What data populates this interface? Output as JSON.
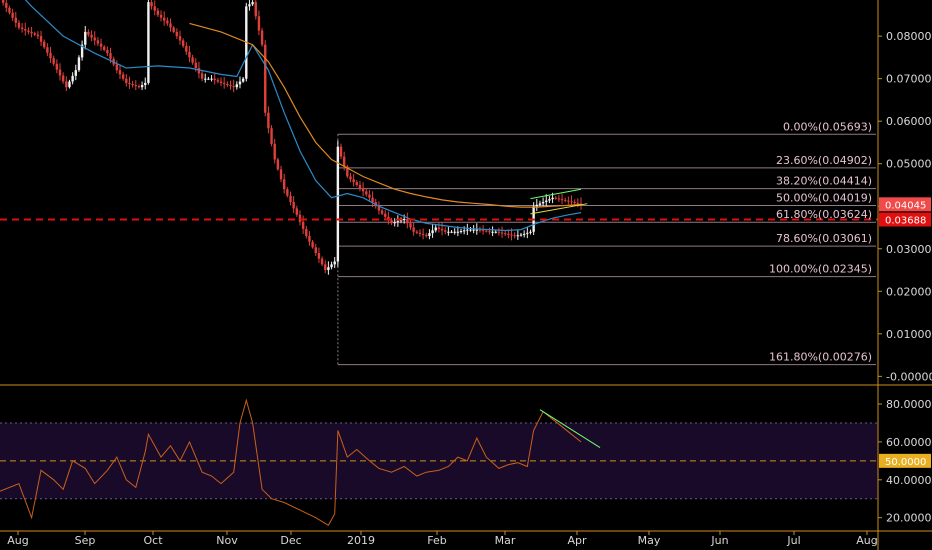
{
  "colors": {
    "background": "#000000",
    "axis_border": "#c8901a",
    "candle_up": "#f2f2f2",
    "candle_down": "#e0403c",
    "ema_fast": "#2b8cc8",
    "ema_slow": "#e08a20",
    "fib_line": "#8e7a86",
    "fib_text": "#e4c2d0",
    "support_dash": "#e01010",
    "rsi_line": "#c8601c",
    "rsi_band": "#1a0a2a",
    "rsi_mid_dash": "#c8901a",
    "channel_top": "#6cff6c",
    "channel_bottom": "#e8e040",
    "price_tag": "#f04a4a",
    "support_tag": "#e01010",
    "rsi_tag": "#e8b020"
  },
  "chart_data": [
    {
      "type": "candlestick",
      "panel": "price",
      "x_ticks": [
        "Aug",
        "Sep",
        "Oct",
        "Nov",
        "Dec",
        "2019",
        "Feb",
        "Mar",
        "Apr",
        "May",
        "Jun",
        "Jul",
        "Aug"
      ],
      "y_ticks": [
        "0.08000",
        "0.07000",
        "0.06000",
        "0.05000",
        "0.04000",
        "0.03000",
        "0.02000",
        "0.01000",
        "-0.00000"
      ],
      "ylim": [
        -0.0018,
        0.0885
      ],
      "last_price": "0.04045",
      "support_level": "0.03688",
      "fibonacci": [
        {
          "label": "0.00%(0.05693)",
          "value": 0.05693
        },
        {
          "label": "23.60%(0.04902)",
          "value": 0.04902
        },
        {
          "label": "38.20%(0.04414)",
          "value": 0.04414
        },
        {
          "label": "50.00%(0.04019)",
          "value": 0.04019
        },
        {
          "label": "61.80%(0.03624)",
          "value": 0.03624
        },
        {
          "label": "78.60%(0.03061)",
          "value": 0.03061
        },
        {
          "label": "100.00%(0.02345)",
          "value": 0.02345
        },
        {
          "label": "161.80%(0.00276)",
          "value": 0.00276
        }
      ],
      "price_path": [
        [
          0,
          0.089
        ],
        [
          6,
          0.082
        ],
        [
          12,
          0.08
        ],
        [
          17,
          0.0735
        ],
        [
          21,
          0.068
        ],
        [
          24,
          0.072
        ],
        [
          27,
          0.081
        ],
        [
          30,
          0.079
        ],
        [
          34,
          0.076
        ],
        [
          37,
          0.072
        ],
        [
          40,
          0.069
        ],
        [
          44,
          0.068
        ],
        [
          46,
          0.069
        ],
        [
          47,
          0.088
        ],
        [
          50,
          0.085
        ],
        [
          53,
          0.083
        ],
        [
          57,
          0.079
        ],
        [
          60,
          0.075
        ],
        [
          64,
          0.07
        ],
        [
          67,
          0.07
        ],
        [
          70,
          0.069
        ],
        [
          74,
          0.068
        ],
        [
          77,
          0.07
        ],
        [
          78,
          0.087
        ],
        [
          80,
          0.088
        ],
        [
          83,
          0.078
        ],
        [
          84,
          0.062
        ],
        [
          87,
          0.051
        ],
        [
          90,
          0.044
        ],
        [
          94,
          0.038
        ],
        [
          97,
          0.033
        ],
        [
          100,
          0.029
        ],
        [
          103,
          0.025
        ],
        [
          106,
          0.027
        ],
        [
          107,
          0.054
        ],
        [
          110,
          0.047
        ],
        [
          113,
          0.045
        ],
        [
          117,
          0.042
        ],
        [
          120,
          0.039
        ],
        [
          124,
          0.036
        ],
        [
          128,
          0.037
        ],
        [
          131,
          0.034
        ],
        [
          135,
          0.033
        ],
        [
          138,
          0.035
        ],
        [
          141,
          0.034
        ],
        [
          145,
          0.034
        ],
        [
          148,
          0.0345
        ],
        [
          151,
          0.0345
        ],
        [
          155,
          0.034
        ],
        [
          157,
          0.034
        ],
        [
          160,
          0.0335
        ],
        [
          163,
          0.033
        ],
        [
          166,
          0.0335
        ],
        [
          168,
          0.034
        ],
        [
          169,
          0.04
        ],
        [
          172,
          0.041
        ],
        [
          175,
          0.042
        ],
        [
          178,
          0.0415
        ],
        [
          181,
          0.041
        ],
        [
          184,
          0.0404
        ]
      ],
      "ema_fast_path": [
        [
          0,
          0.095
        ],
        [
          10,
          0.087
        ],
        [
          20,
          0.08
        ],
        [
          30,
          0.076
        ],
        [
          40,
          0.0725
        ],
        [
          50,
          0.073
        ],
        [
          60,
          0.0725
        ],
        [
          70,
          0.071
        ],
        [
          75,
          0.0705
        ],
        [
          80,
          0.078
        ],
        [
          85,
          0.072
        ],
        [
          90,
          0.062
        ],
        [
          95,
          0.053
        ],
        [
          100,
          0.046
        ],
        [
          105,
          0.042
        ],
        [
          110,
          0.043
        ],
        [
          115,
          0.042
        ],
        [
          120,
          0.04
        ],
        [
          125,
          0.0385
        ],
        [
          130,
          0.037
        ],
        [
          135,
          0.036
        ],
        [
          140,
          0.0355
        ],
        [
          145,
          0.035
        ],
        [
          150,
          0.0347
        ],
        [
          155,
          0.0345
        ],
        [
          160,
          0.0343
        ],
        [
          165,
          0.0345
        ],
        [
          170,
          0.036
        ],
        [
          175,
          0.0372
        ],
        [
          180,
          0.038
        ],
        [
          184,
          0.0385
        ]
      ],
      "ema_slow_path": [
        [
          60,
          0.083
        ],
        [
          70,
          0.081
        ],
        [
          80,
          0.078
        ],
        [
          85,
          0.074
        ],
        [
          90,
          0.068
        ],
        [
          95,
          0.061
        ],
        [
          100,
          0.055
        ],
        [
          105,
          0.051
        ],
        [
          110,
          0.049
        ],
        [
          115,
          0.047
        ],
        [
          120,
          0.0455
        ],
        [
          125,
          0.044
        ],
        [
          130,
          0.043
        ],
        [
          135,
          0.0422
        ],
        [
          140,
          0.0415
        ],
        [
          145,
          0.041
        ],
        [
          150,
          0.0407
        ],
        [
          155,
          0.0404
        ],
        [
          160,
          0.04
        ],
        [
          165,
          0.0398
        ],
        [
          170,
          0.0398
        ],
        [
          175,
          0.04
        ],
        [
          180,
          0.0402
        ],
        [
          184,
          0.0404
        ]
      ]
    },
    {
      "type": "line",
      "panel": "rsi",
      "y_ticks": [
        "80.0000",
        "60.0000",
        "40.0000",
        "20.0000"
      ],
      "ylim": [
        13.5,
        89.5
      ],
      "overbought": 70,
      "oversold": 30,
      "midline": 50,
      "midline_tag": "50.0000",
      "rsi_path": [
        [
          0,
          34
        ],
        [
          6,
          38
        ],
        [
          10,
          20
        ],
        [
          13,
          45
        ],
        [
          17,
          40
        ],
        [
          20,
          35
        ],
        [
          23,
          50
        ],
        [
          27,
          46
        ],
        [
          30,
          38
        ],
        [
          34,
          45
        ],
        [
          37,
          52
        ],
        [
          40,
          40
        ],
        [
          43,
          36
        ],
        [
          46,
          55
        ],
        [
          47,
          64
        ],
        [
          51,
          52
        ],
        [
          54,
          58
        ],
        [
          57,
          50
        ],
        [
          60,
          60
        ],
        [
          64,
          44
        ],
        [
          67,
          42
        ],
        [
          70,
          38
        ],
        [
          74,
          44
        ],
        [
          76,
          70
        ],
        [
          78,
          82
        ],
        [
          80,
          70
        ],
        [
          83,
          35
        ],
        [
          86,
          30
        ],
        [
          90,
          28
        ],
        [
          95,
          24
        ],
        [
          100,
          20
        ],
        [
          104,
          16
        ],
        [
          106,
          22
        ],
        [
          107,
          66
        ],
        [
          110,
          52
        ],
        [
          113,
          56
        ],
        [
          117,
          50
        ],
        [
          120,
          46
        ],
        [
          124,
          44
        ],
        [
          128,
          47
        ],
        [
          132,
          42
        ],
        [
          135,
          44
        ],
        [
          139,
          45
        ],
        [
          142,
          47
        ],
        [
          145,
          52
        ],
        [
          148,
          50
        ],
        [
          151,
          62
        ],
        [
          154,
          52
        ],
        [
          158,
          46
        ],
        [
          161,
          48
        ],
        [
          164,
          49
        ],
        [
          167,
          47
        ],
        [
          169,
          66
        ],
        [
          172,
          76
        ],
        [
          175,
          72
        ],
        [
          178,
          68
        ],
        [
          181,
          64
        ],
        [
          184,
          60
        ]
      ]
    }
  ]
}
